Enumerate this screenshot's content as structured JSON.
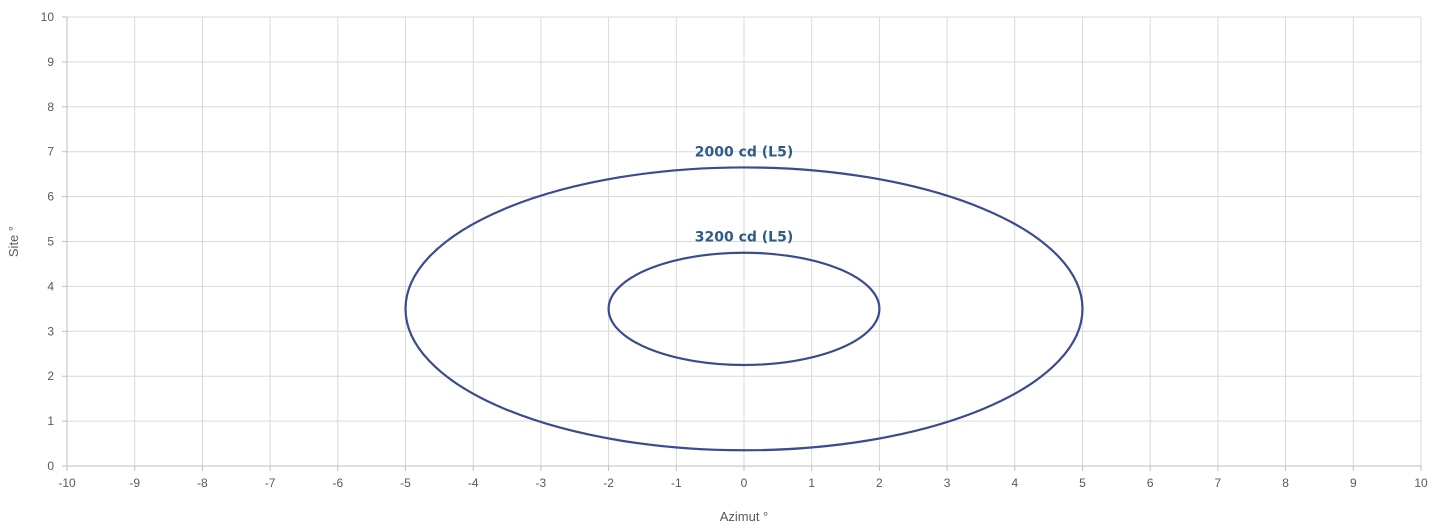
{
  "chart_data": {
    "type": "scatter",
    "title": "",
    "xlabel": "Azimut °",
    "ylabel": "Site °",
    "xlim": [
      -10,
      10
    ],
    "ylim": [
      0,
      10
    ],
    "xticks": [
      -10,
      -9,
      -8,
      -7,
      -6,
      -5,
      -4,
      -3,
      -2,
      -1,
      0,
      1,
      2,
      3,
      4,
      5,
      6,
      7,
      8,
      9,
      10
    ],
    "yticks": [
      0,
      1,
      2,
      3,
      4,
      5,
      6,
      7,
      8,
      9,
      10
    ],
    "grid": true,
    "legend": "none",
    "series": [
      {
        "label": "2000 cd (L5)",
        "shape": "ellipse",
        "center": [
          0,
          3.5
        ],
        "semi_axis_x": 5,
        "semi_axis_y": 3.15,
        "x_extent": [
          -5,
          5
        ],
        "y_extent": [
          0.35,
          6.65
        ],
        "color": "#3b4b8f"
      },
      {
        "label": "3200 cd (L5)",
        "shape": "ellipse",
        "center": [
          0,
          3.5
        ],
        "semi_axis_x": 2,
        "semi_axis_y": 1.25,
        "x_extent": [
          -2,
          2
        ],
        "y_extent": [
          2.25,
          4.75
        ],
        "color": "#3b4b8f"
      }
    ],
    "label_color": "#2e5c8a"
  }
}
